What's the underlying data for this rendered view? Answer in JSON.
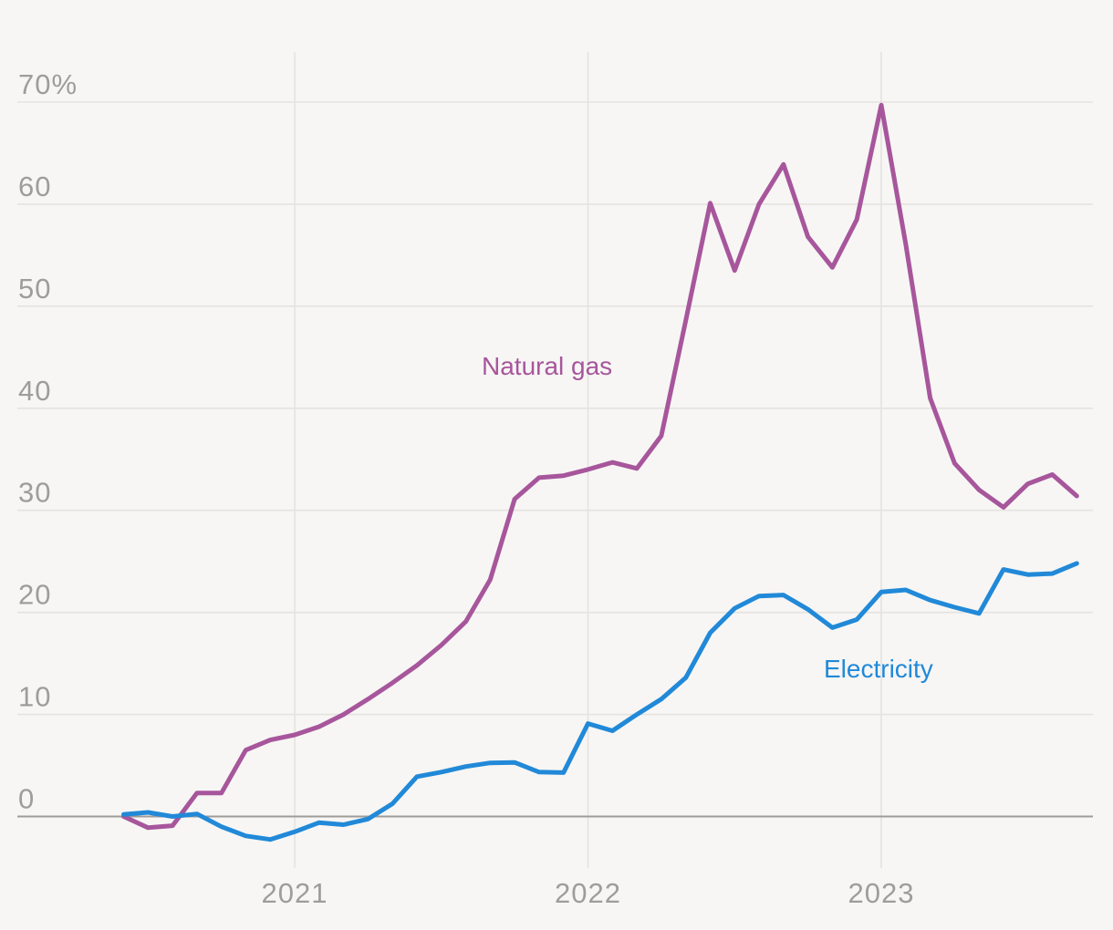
{
  "colors": {
    "background": "#f7f6f4",
    "gridline": "#e5e3e0",
    "zero_line": "#9d9c99",
    "tick_text": "#9e9d9a",
    "natural_gas": "#a7569c",
    "electricity": "#2189d8"
  },
  "chart_data": {
    "type": "line",
    "title": "",
    "x": [
      "2020-06",
      "2020-07",
      "2020-08",
      "2020-09",
      "2020-10",
      "2020-11",
      "2020-12",
      "2021-01",
      "2021-02",
      "2021-03",
      "2021-04",
      "2021-05",
      "2021-06",
      "2021-07",
      "2021-08",
      "2021-09",
      "2021-10",
      "2021-11",
      "2021-12",
      "2022-01",
      "2022-02",
      "2022-03",
      "2022-04",
      "2022-05",
      "2022-06",
      "2022-07",
      "2022-08",
      "2022-09",
      "2022-10",
      "2022-11",
      "2022-12",
      "2023-01",
      "2023-02",
      "2023-03",
      "2023-04",
      "2023-05",
      "2023-06",
      "2023-07",
      "2023-08",
      "2023-09"
    ],
    "series": [
      {
        "name": "Natural gas",
        "color": "#a7569c",
        "values": [
          0,
          -1.1,
          -0.9,
          2.3,
          2.3,
          6.5,
          7.5,
          8.0,
          8.8,
          10.0,
          11.5,
          13.1,
          14.8,
          16.8,
          19.1,
          23.2,
          31.1,
          33.2,
          33.4,
          34.0,
          34.7,
          34.1,
          37.3,
          48.6,
          60.1,
          53.5,
          60.0,
          63.9,
          56.8,
          53.8,
          58.5,
          69.7,
          56.1,
          41.0,
          34.6,
          32.0,
          30.3,
          32.6,
          33.5,
          31.4
        ]
      },
      {
        "name": "Electricity",
        "color": "#2189d8",
        "values": [
          0.2,
          0.4,
          0.0,
          0.25,
          -1.0,
          -1.9,
          -2.25,
          -1.5,
          -0.6,
          -0.8,
          -0.25,
          1.25,
          3.9,
          4.35,
          4.9,
          5.25,
          5.3,
          4.35,
          4.3,
          9.1,
          8.4,
          10.0,
          11.5,
          13.6,
          18.0,
          20.4,
          21.6,
          21.7,
          20.3,
          18.5,
          19.3,
          22.0,
          22.2,
          21.2,
          20.5,
          19.9,
          24.2,
          23.7,
          23.8,
          24.8
        ]
      }
    ],
    "y_ticks": [
      {
        "value": 70,
        "label": "70%"
      },
      {
        "value": 60,
        "label": "60"
      },
      {
        "value": 50,
        "label": "50"
      },
      {
        "value": 40,
        "label": "40"
      },
      {
        "value": 30,
        "label": "30"
      },
      {
        "value": 20,
        "label": "20"
      },
      {
        "value": 10,
        "label": "10"
      },
      {
        "value": 0,
        "label": "0"
      }
    ],
    "x_ticks": [
      {
        "label": "2021",
        "x_index": 7
      },
      {
        "label": "2022",
        "x_index": 19
      },
      {
        "label": "2023",
        "x_index": 31
      }
    ],
    "ylim": [
      -4.5,
      74
    ],
    "grid": "horizontal gridlines + vertical year gridlines, zero baseline emphasized",
    "legend_position": "inline labels next to lines"
  }
}
